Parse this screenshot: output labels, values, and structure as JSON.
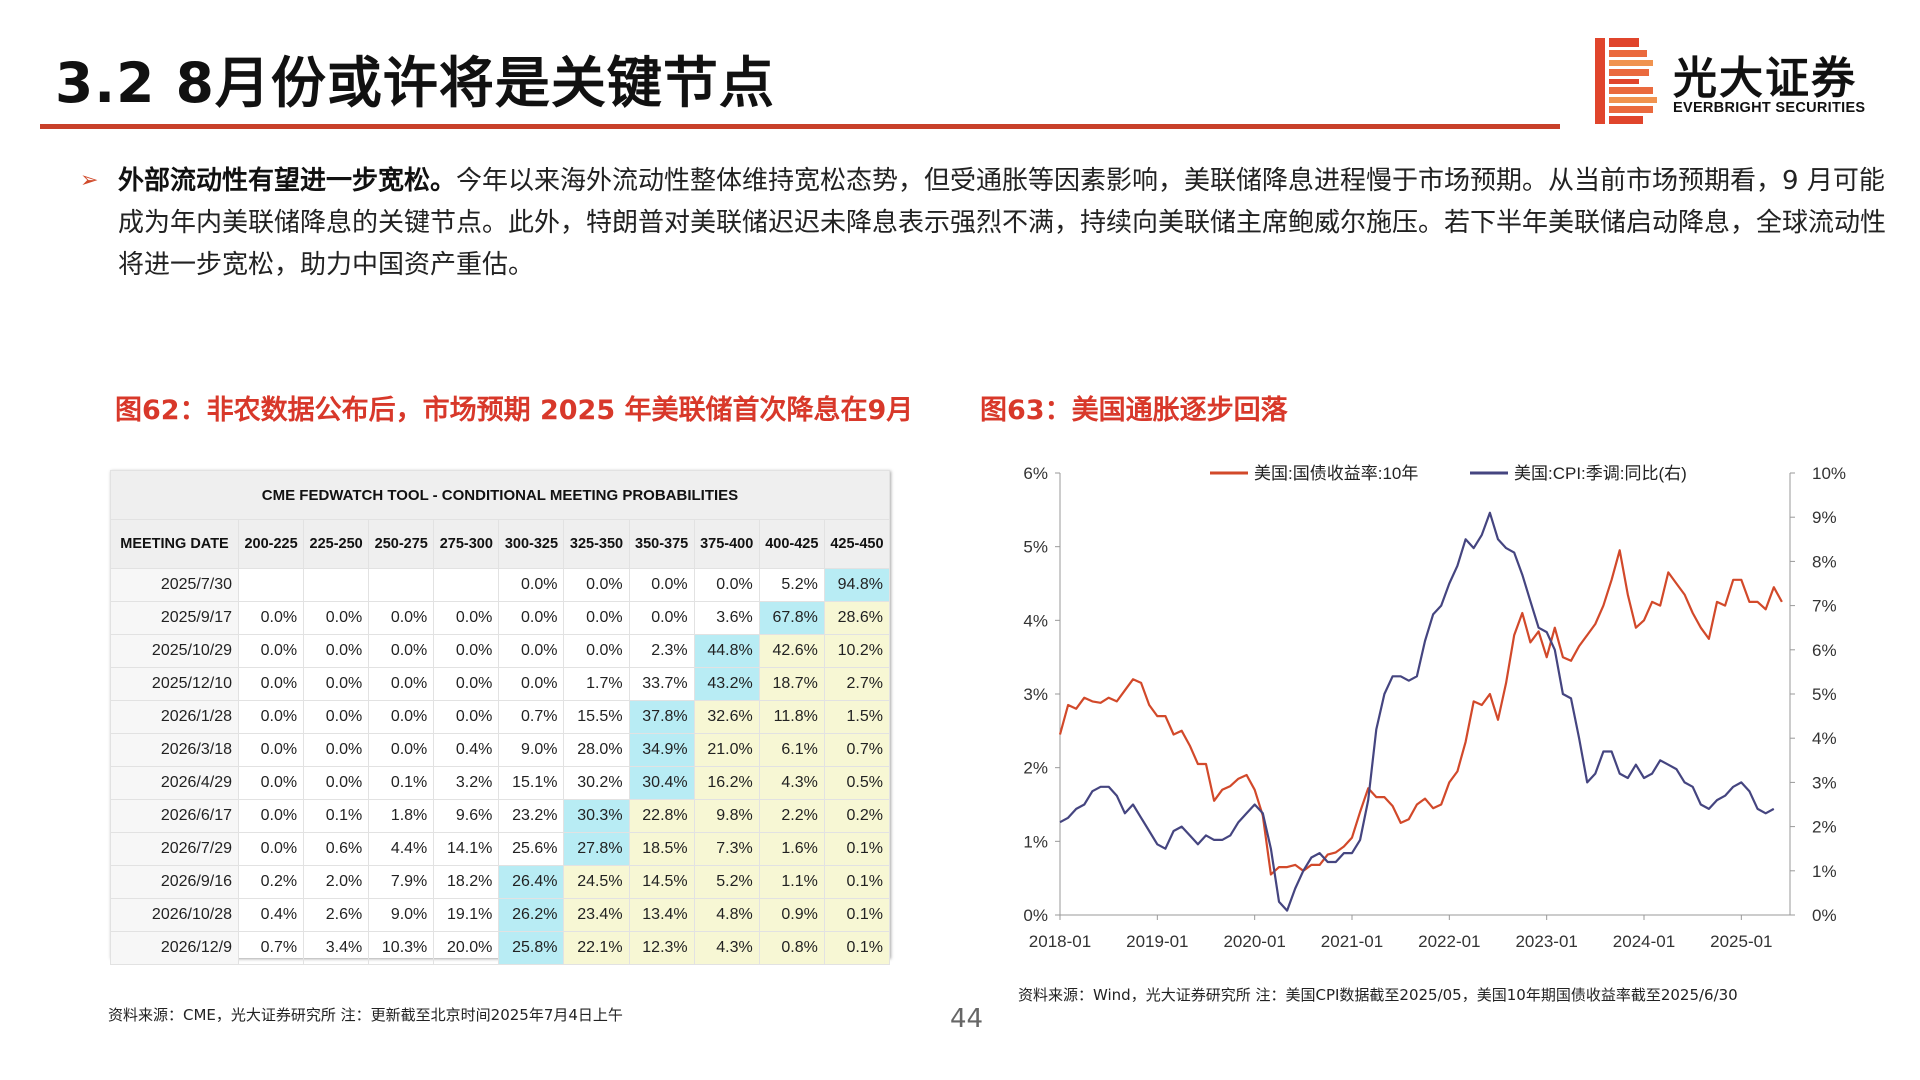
{
  "header": {
    "title": "3.2 8月份或许将是关键节点",
    "logo_cn": "光大证券",
    "logo_en": "EVERBRIGHT SECURITIES"
  },
  "bullet": {
    "marker": "➢",
    "bold": "外部流动性有望进一步宽松。",
    "text": "今年以来海外流动性整体维持宽松态势，但受通胀等因素影响，美联储降息进程慢于市场预期。从当前市场预期看，9 月可能成为年内美联储降息的关键节点。此外，特朗普对美联储迟迟未降息表示强烈不满，持续向美联储主席鲍威尔施压。若下半年美联储启动降息，全球流动性将进一步宽松，助力中国资产重估。"
  },
  "figure62": {
    "title": "图62：非农数据公布后，市场预期 2025 年美联储首次降息在9月",
    "source": "资料来源：CME，光大证券研究所   注：更新截至北京时间2025年7月4日上午"
  },
  "figure63": {
    "title": "图63：美国通胀逐步回落",
    "source": "资料来源：Wind，光大证券研究所   注：美国CPI数据截至2025/05，美国10年期国债收益率截至2025/6/30"
  },
  "page_number": "44",
  "colors": {
    "accent_red": "#c8402a",
    "highlight_blue": "#b8ecf4",
    "highlight_yellow": "#f7f7d4",
    "series_10y": "#d2492a",
    "series_cpi": "#454580"
  },
  "chart_data": [
    {
      "type": "table",
      "title": "CME FEDWATCH TOOL - CONDITIONAL MEETING PROBABILITIES",
      "columns": [
        "MEETING DATE",
        "200-225",
        "225-250",
        "250-275",
        "275-300",
        "300-325",
        "325-350",
        "350-375",
        "375-400",
        "400-425",
        "425-450"
      ],
      "rows": [
        {
          "date": "2025/7/30",
          "values": [
            "",
            "",
            "",
            "",
            "0.0%",
            "0.0%",
            "0.0%",
            "0.0%",
            "5.2%",
            "94.8%"
          ],
          "max_col": 9
        },
        {
          "date": "2025/9/17",
          "values": [
            "0.0%",
            "0.0%",
            "0.0%",
            "0.0%",
            "0.0%",
            "0.0%",
            "0.0%",
            "3.6%",
            "67.8%",
            "28.6%"
          ],
          "max_col": 8
        },
        {
          "date": "2025/10/29",
          "values": [
            "0.0%",
            "0.0%",
            "0.0%",
            "0.0%",
            "0.0%",
            "0.0%",
            "2.3%",
            "44.8%",
            "42.6%",
            "10.2%"
          ],
          "max_col": 7
        },
        {
          "date": "2025/12/10",
          "values": [
            "0.0%",
            "0.0%",
            "0.0%",
            "0.0%",
            "0.0%",
            "1.7%",
            "33.7%",
            "43.2%",
            "18.7%",
            "2.7%"
          ],
          "max_col": 7
        },
        {
          "date": "2026/1/28",
          "values": [
            "0.0%",
            "0.0%",
            "0.0%",
            "0.0%",
            "0.7%",
            "15.5%",
            "37.8%",
            "32.6%",
            "11.8%",
            "1.5%"
          ],
          "max_col": 6
        },
        {
          "date": "2026/3/18",
          "values": [
            "0.0%",
            "0.0%",
            "0.0%",
            "0.4%",
            "9.0%",
            "28.0%",
            "34.9%",
            "21.0%",
            "6.1%",
            "0.7%"
          ],
          "max_col": 6
        },
        {
          "date": "2026/4/29",
          "values": [
            "0.0%",
            "0.0%",
            "0.1%",
            "3.2%",
            "15.1%",
            "30.2%",
            "30.4%",
            "16.2%",
            "4.3%",
            "0.5%"
          ],
          "max_col": 6
        },
        {
          "date": "2026/6/17",
          "values": [
            "0.0%",
            "0.1%",
            "1.8%",
            "9.6%",
            "23.2%",
            "30.3%",
            "22.8%",
            "9.8%",
            "2.2%",
            "0.2%"
          ],
          "max_col": 5
        },
        {
          "date": "2026/7/29",
          "values": [
            "0.0%",
            "0.6%",
            "4.4%",
            "14.1%",
            "25.6%",
            "27.8%",
            "18.5%",
            "7.3%",
            "1.6%",
            "0.1%"
          ],
          "max_col": 5
        },
        {
          "date": "2026/9/16",
          "values": [
            "0.2%",
            "2.0%",
            "7.9%",
            "18.2%",
            "26.4%",
            "24.5%",
            "14.5%",
            "5.2%",
            "1.1%",
            "0.1%"
          ],
          "max_col": 4
        },
        {
          "date": "2026/10/28",
          "values": [
            "0.4%",
            "2.6%",
            "9.0%",
            "19.1%",
            "26.2%",
            "23.4%",
            "13.4%",
            "4.8%",
            "0.9%",
            "0.1%"
          ],
          "max_col": 4
        },
        {
          "date": "2026/12/9",
          "values": [
            "0.7%",
            "3.4%",
            "10.3%",
            "20.0%",
            "25.8%",
            "22.1%",
            "12.3%",
            "4.3%",
            "0.8%",
            "0.1%"
          ],
          "max_col": 4
        }
      ]
    },
    {
      "type": "line",
      "x_labels": [
        "2018-01",
        "2019-01",
        "2020-01",
        "2021-01",
        "2022-01",
        "2023-01",
        "2024-01",
        "2025-01"
      ],
      "y_left": {
        "ticks": [
          "0%",
          "1%",
          "2%",
          "3%",
          "4%",
          "5%",
          "6%"
        ],
        "range": [
          0,
          6
        ]
      },
      "y_right": {
        "ticks": [
          "0%",
          "1%",
          "2%",
          "3%",
          "4%",
          "5%",
          "6%",
          "7%",
          "8%",
          "9%",
          "10%"
        ],
        "range": [
          0,
          10
        ]
      },
      "legend_position": "top",
      "grid": false,
      "series": [
        {
          "name": "美国:国债收益率:10年",
          "axis": "left",
          "color": "#d2492a",
          "points": [
            [
              "2018-01",
              2.45
            ],
            [
              "2018-02",
              2.85
            ],
            [
              "2018-03",
              2.8
            ],
            [
              "2018-04",
              2.95
            ],
            [
              "2018-05",
              2.9
            ],
            [
              "2018-06",
              2.88
            ],
            [
              "2018-07",
              2.95
            ],
            [
              "2018-08",
              2.9
            ],
            [
              "2018-09",
              3.05
            ],
            [
              "2018-10",
              3.2
            ],
            [
              "2018-11",
              3.15
            ],
            [
              "2018-12",
              2.85
            ],
            [
              "2019-01",
              2.7
            ],
            [
              "2019-02",
              2.7
            ],
            [
              "2019-03",
              2.45
            ],
            [
              "2019-04",
              2.5
            ],
            [
              "2019-05",
              2.3
            ],
            [
              "2019-06",
              2.05
            ],
            [
              "2019-07",
              2.05
            ],
            [
              "2019-08",
              1.55
            ],
            [
              "2019-09",
              1.7
            ],
            [
              "2019-10",
              1.75
            ],
            [
              "2019-11",
              1.85
            ],
            [
              "2019-12",
              1.9
            ],
            [
              "2020-01",
              1.7
            ],
            [
              "2020-02",
              1.35
            ],
            [
              "2020-03",
              0.55
            ],
            [
              "2020-04",
              0.65
            ],
            [
              "2020-05",
              0.65
            ],
            [
              "2020-06",
              0.68
            ],
            [
              "2020-07",
              0.6
            ],
            [
              "2020-08",
              0.68
            ],
            [
              "2020-09",
              0.68
            ],
            [
              "2020-10",
              0.82
            ],
            [
              "2020-11",
              0.85
            ],
            [
              "2020-12",
              0.93
            ],
            [
              "2021-01",
              1.05
            ],
            [
              "2021-02",
              1.4
            ],
            [
              "2021-03",
              1.72
            ],
            [
              "2021-04",
              1.6
            ],
            [
              "2021-05",
              1.6
            ],
            [
              "2021-06",
              1.48
            ],
            [
              "2021-07",
              1.25
            ],
            [
              "2021-08",
              1.3
            ],
            [
              "2021-09",
              1.5
            ],
            [
              "2021-10",
              1.58
            ],
            [
              "2021-11",
              1.45
            ],
            [
              "2021-12",
              1.5
            ],
            [
              "2022-01",
              1.8
            ],
            [
              "2022-02",
              1.95
            ],
            [
              "2022-03",
              2.35
            ],
            [
              "2022-04",
              2.9
            ],
            [
              "2022-05",
              2.85
            ],
            [
              "2022-06",
              3.0
            ],
            [
              "2022-07",
              2.65
            ],
            [
              "2022-08",
              3.15
            ],
            [
              "2022-09",
              3.8
            ],
            [
              "2022-10",
              4.1
            ],
            [
              "2022-11",
              3.7
            ],
            [
              "2022-12",
              3.85
            ],
            [
              "2023-01",
              3.5
            ],
            [
              "2023-02",
              3.9
            ],
            [
              "2023-03",
              3.5
            ],
            [
              "2023-04",
              3.45
            ],
            [
              "2023-05",
              3.65
            ],
            [
              "2023-06",
              3.8
            ],
            [
              "2023-07",
              3.95
            ],
            [
              "2023-08",
              4.2
            ],
            [
              "2023-09",
              4.55
            ],
            [
              "2023-10",
              4.95
            ],
            [
              "2023-11",
              4.35
            ],
            [
              "2023-12",
              3.9
            ],
            [
              "2024-01",
              4.0
            ],
            [
              "2024-02",
              4.25
            ],
            [
              "2024-03",
              4.2
            ],
            [
              "2024-04",
              4.65
            ],
            [
              "2024-05",
              4.5
            ],
            [
              "2024-06",
              4.35
            ],
            [
              "2024-07",
              4.1
            ],
            [
              "2024-08",
              3.9
            ],
            [
              "2024-09",
              3.75
            ],
            [
              "2024-10",
              4.25
            ],
            [
              "2024-11",
              4.2
            ],
            [
              "2024-12",
              4.55
            ],
            [
              "2025-01",
              4.55
            ],
            [
              "2025-02",
              4.25
            ],
            [
              "2025-03",
              4.25
            ],
            [
              "2025-04",
              4.15
            ],
            [
              "2025-05",
              4.45
            ],
            [
              "2025-06",
              4.25
            ]
          ]
        },
        {
          "name": "美国:CPI:季调:同比(右)",
          "axis": "right",
          "color": "#454580",
          "points": [
            [
              "2018-01",
              2.1
            ],
            [
              "2018-02",
              2.2
            ],
            [
              "2018-03",
              2.4
            ],
            [
              "2018-04",
              2.5
            ],
            [
              "2018-05",
              2.8
            ],
            [
              "2018-06",
              2.9
            ],
            [
              "2018-07",
              2.9
            ],
            [
              "2018-08",
              2.7
            ],
            [
              "2018-09",
              2.3
            ],
            [
              "2018-10",
              2.5
            ],
            [
              "2018-11",
              2.2
            ],
            [
              "2018-12",
              1.9
            ],
            [
              "2019-01",
              1.6
            ],
            [
              "2019-02",
              1.5
            ],
            [
              "2019-03",
              1.9
            ],
            [
              "2019-04",
              2.0
            ],
            [
              "2019-05",
              1.8
            ],
            [
              "2019-06",
              1.6
            ],
            [
              "2019-07",
              1.8
            ],
            [
              "2019-08",
              1.7
            ],
            [
              "2019-09",
              1.7
            ],
            [
              "2019-10",
              1.8
            ],
            [
              "2019-11",
              2.1
            ],
            [
              "2019-12",
              2.3
            ],
            [
              "2020-01",
              2.5
            ],
            [
              "2020-02",
              2.3
            ],
            [
              "2020-03",
              1.5
            ],
            [
              "2020-04",
              0.3
            ],
            [
              "2020-05",
              0.1
            ],
            [
              "2020-06",
              0.6
            ],
            [
              "2020-07",
              1.0
            ],
            [
              "2020-08",
              1.3
            ],
            [
              "2020-09",
              1.4
            ],
            [
              "2020-10",
              1.2
            ],
            [
              "2020-11",
              1.2
            ],
            [
              "2020-12",
              1.4
            ],
            [
              "2021-01",
              1.4
            ],
            [
              "2021-02",
              1.7
            ],
            [
              "2021-03",
              2.6
            ],
            [
              "2021-04",
              4.2
            ],
            [
              "2021-05",
              5.0
            ],
            [
              "2021-06",
              5.4
            ],
            [
              "2021-07",
              5.4
            ],
            [
              "2021-08",
              5.3
            ],
            [
              "2021-09",
              5.4
            ],
            [
              "2021-10",
              6.2
            ],
            [
              "2021-11",
              6.8
            ],
            [
              "2021-12",
              7.0
            ],
            [
              "2022-01",
              7.5
            ],
            [
              "2022-02",
              7.9
            ],
            [
              "2022-03",
              8.5
            ],
            [
              "2022-04",
              8.3
            ],
            [
              "2022-05",
              8.6
            ],
            [
              "2022-06",
              9.1
            ],
            [
              "2022-07",
              8.5
            ],
            [
              "2022-08",
              8.3
            ],
            [
              "2022-09",
              8.2
            ],
            [
              "2022-10",
              7.7
            ],
            [
              "2022-11",
              7.1
            ],
            [
              "2022-12",
              6.5
            ],
            [
              "2023-01",
              6.4
            ],
            [
              "2023-02",
              6.0
            ],
            [
              "2023-03",
              5.0
            ],
            [
              "2023-04",
              4.9
            ],
            [
              "2023-05",
              4.0
            ],
            [
              "2023-06",
              3.0
            ],
            [
              "2023-07",
              3.2
            ],
            [
              "2023-08",
              3.7
            ],
            [
              "2023-09",
              3.7
            ],
            [
              "2023-10",
              3.2
            ],
            [
              "2023-11",
              3.1
            ],
            [
              "2023-12",
              3.4
            ],
            [
              "2024-01",
              3.1
            ],
            [
              "2024-02",
              3.2
            ],
            [
              "2024-03",
              3.5
            ],
            [
              "2024-04",
              3.4
            ],
            [
              "2024-05",
              3.3
            ],
            [
              "2024-06",
              3.0
            ],
            [
              "2024-07",
              2.9
            ],
            [
              "2024-08",
              2.5
            ],
            [
              "2024-09",
              2.4
            ],
            [
              "2024-10",
              2.6
            ],
            [
              "2024-11",
              2.7
            ],
            [
              "2024-12",
              2.9
            ],
            [
              "2025-01",
              3.0
            ],
            [
              "2025-02",
              2.8
            ],
            [
              "2025-03",
              2.4
            ],
            [
              "2025-04",
              2.3
            ],
            [
              "2025-05",
              2.4
            ]
          ]
        }
      ]
    }
  ]
}
